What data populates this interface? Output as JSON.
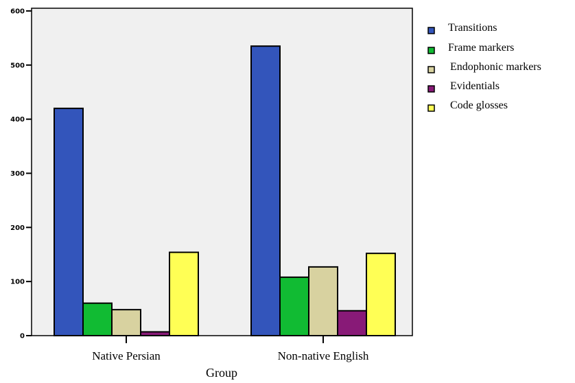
{
  "chart_data": {
    "type": "bar",
    "xlabel": "Group",
    "ylabel": "",
    "categories": [
      "Native Persian",
      "Non-native English"
    ],
    "series": [
      {
        "name": "Transitions",
        "values": [
          420,
          535
        ],
        "color": "#3355bb"
      },
      {
        "name": "Frame markers",
        "values": [
          60,
          108
        ],
        "color": "#11bb33"
      },
      {
        "name": "Endophonic markers",
        "values": [
          48,
          127
        ],
        "color": "#d8d2a0"
      },
      {
        "name": "Evidentials",
        "values": [
          7,
          46
        ],
        "color": "#881a77"
      },
      {
        "name": "Code glosses",
        "values": [
          154,
          152
        ],
        "color": "#ffff55"
      }
    ],
    "ylim": [
      0,
      605
    ],
    "yticks": [
      "0",
      "100",
      "200",
      "300",
      "400",
      "500",
      "600"
    ],
    "plot_background": "#f0f0f0",
    "grid": false,
    "legend_position": "right"
  }
}
